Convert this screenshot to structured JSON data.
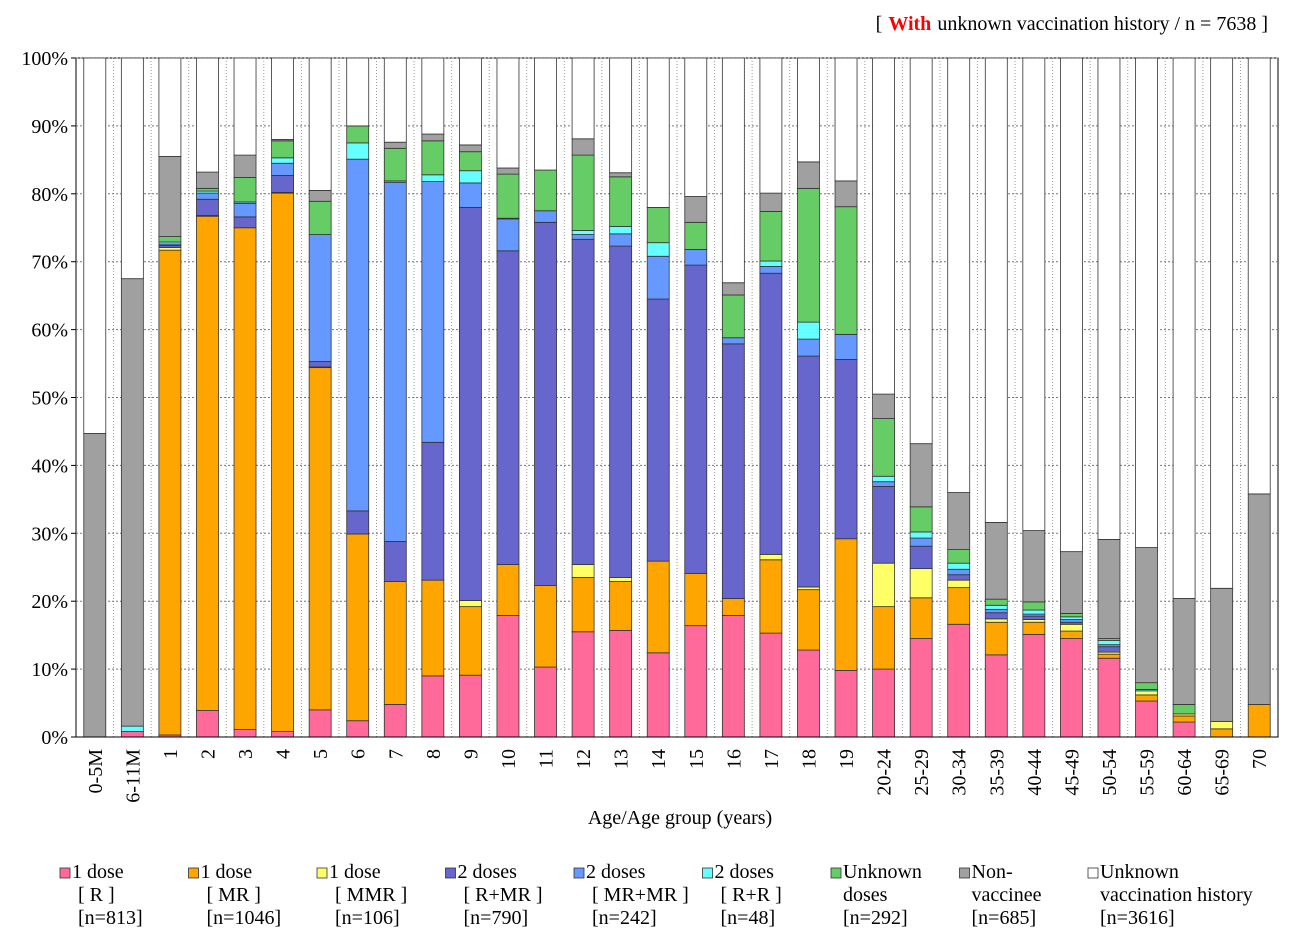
{
  "chart_data": {
    "type": "stacked_bar",
    "title": [
      "[",
      "With",
      "unknown vaccination history / n = 7638 ]"
    ],
    "x_label": "Age/Age group (years)",
    "categories": [
      "0-5M",
      "6-11M",
      "1",
      "2",
      "3",
      "4",
      "5",
      "6",
      "7",
      "8",
      "9",
      "10",
      "11",
      "12",
      "13",
      "14",
      "15",
      "16",
      "17",
      "18",
      "19",
      "20-24",
      "25-29",
      "30-34",
      "35-39",
      "40-44",
      "45-49",
      "50-54",
      "55-59",
      "60-64",
      "65-69",
      "70"
    ],
    "ylim": [
      0,
      100
    ],
    "yticks": [
      {
        "value": 0,
        "label": "0%"
      },
      {
        "value": 10,
        "label": "10%"
      },
      {
        "value": 20,
        "label": "20%"
      },
      {
        "value": 30,
        "label": "30%"
      },
      {
        "value": 40,
        "label": "40%"
      },
      {
        "value": 50,
        "label": "50%"
      },
      {
        "value": 60,
        "label": "60%"
      },
      {
        "value": 70,
        "label": "70%"
      },
      {
        "value": 80,
        "label": "80%"
      },
      {
        "value": 90,
        "label": "90%"
      },
      {
        "value": 100,
        "label": "100%"
      }
    ],
    "grid": true,
    "series": [
      {
        "name": [
          "1 dose",
          "[ R ]",
          "[n=813]"
        ],
        "color": "#ff6a9a",
        "values": [
          0,
          0.8,
          0.3,
          3.9,
          1.1,
          0.8,
          4.0,
          2.4,
          4.8,
          9.0,
          9.1,
          17.9,
          10.3,
          15.5,
          15.7,
          12.4,
          16.4,
          17.9,
          15.3,
          12.8,
          9.8,
          10.0,
          14.5,
          16.6,
          12.1,
          15.1,
          14.5,
          11.6,
          5.3,
          2.2,
          0,
          0
        ]
      },
      {
        "name": [
          "1 dose",
          "[ MR ]",
          "[n=1046]"
        ],
        "color": "#ffa500",
        "values": [
          0,
          0,
          71.4,
          72.8,
          73.9,
          79.3,
          50.4,
          27.5,
          18.1,
          14.1,
          10.1,
          7.5,
          12.0,
          8.0,
          7.2,
          13.5,
          7.7,
          2.5,
          10.8,
          8.9,
          19.4,
          9.2,
          6.0,
          5.4,
          4.8,
          1.8,
          1.1,
          0.6,
          0.9,
          0.9,
          1.2,
          4.8
        ]
      },
      {
        "name": [
          "1 dose",
          "[ MMR ]",
          "[n=106]"
        ],
        "color": "#ffff66",
        "values": [
          0,
          0,
          0.4,
          0.1,
          0,
          0.1,
          0.1,
          0,
          0,
          0,
          0.9,
          0,
          0,
          1.9,
          0.6,
          0,
          0,
          0,
          0.8,
          0.4,
          0,
          6.4,
          4.3,
          1.1,
          0.5,
          0.4,
          1.0,
          0.3,
          0.6,
          0.3,
          1.1,
          0
        ]
      },
      {
        "name": [
          "2 doses",
          "[ R+MR ]",
          "[n=790]"
        ],
        "color": "#6666cc",
        "values": [
          0,
          0,
          0.3,
          2.4,
          1.6,
          2.5,
          0.8,
          3.4,
          5.9,
          20.3,
          57.9,
          46.2,
          53.5,
          47.9,
          48.8,
          38.6,
          45.4,
          37.5,
          41.4,
          34.0,
          26.4,
          11.3,
          3.3,
          0.8,
          0.9,
          0.5,
          0.3,
          0.8,
          0,
          0,
          0,
          0
        ]
      },
      {
        "name": [
          "2 doses",
          "[ MR+MR ]",
          "[n=242]"
        ],
        "color": "#6699ff",
        "values": [
          0,
          0,
          0.2,
          0.9,
          2.0,
          1.8,
          18.7,
          51.8,
          52.9,
          38.4,
          3.6,
          4.7,
          1.7,
          0.7,
          1.8,
          6.3,
          2.3,
          0.9,
          1.0,
          2.5,
          3.7,
          0.7,
          1.2,
          0.8,
          0.5,
          0.3,
          0.4,
          0.3,
          0,
          0,
          0,
          0
        ]
      },
      {
        "name": [
          "2 doses",
          "[ R+R ]",
          "[n=48]"
        ],
        "color": "#66ffff",
        "values": [
          0,
          0.8,
          0.3,
          0.3,
          0.2,
          0.8,
          0,
          2.4,
          0.2,
          1.0,
          1.8,
          0.1,
          0,
          0.6,
          1.1,
          2.0,
          0,
          0,
          0.8,
          2.5,
          0,
          0.8,
          0.9,
          0.9,
          0.6,
          0.6,
          0.4,
          0.6,
          0.2,
          0,
          0,
          0
        ]
      },
      {
        "name": [
          "Unknown",
          "doses",
          "[n=292]"
        ],
        "color": "#66cc66",
        "values": [
          0,
          0,
          0.8,
          0.4,
          3.6,
          2.5,
          4.9,
          2.5,
          4.8,
          5.0,
          2.8,
          6.5,
          6.0,
          11.1,
          7.3,
          5.2,
          4.0,
          6.3,
          7.3,
          19.7,
          18.8,
          8.5,
          3.7,
          2.0,
          0.9,
          1.2,
          0.5,
          0.3,
          1.0,
          1.4,
          0,
          0
        ]
      },
      {
        "name": [
          "Non-",
          "vaccinee",
          "[n=685]"
        ],
        "color": "#a0a0a0",
        "values": [
          44.7,
          65.9,
          11.8,
          2.4,
          3.3,
          0.2,
          1.6,
          0,
          0.9,
          1.0,
          1.0,
          0.9,
          0,
          2.4,
          0.6,
          0,
          3.8,
          1.8,
          2.7,
          3.9,
          3.8,
          3.6,
          9.3,
          8.4,
          11.3,
          10.5,
          9.1,
          14.6,
          19.9,
          15.6,
          19.6,
          31.0
        ]
      },
      {
        "name": [
          "Unknown",
          "vaccination history",
          "[n=3616]"
        ],
        "color": "#ffffff",
        "values": [
          55.3,
          32.5,
          14.5,
          16.8,
          14.3,
          12.0,
          19.5,
          10.0,
          12.4,
          11.2,
          12.8,
          16.2,
          16.5,
          11.9,
          16.9,
          22.0,
          20.4,
          33.1,
          19.9,
          15.3,
          18.1,
          49.5,
          56.8,
          64.0,
          68.4,
          69.6,
          72.7,
          70.9,
          72.1,
          79.6,
          78.1,
          64.2
        ]
      }
    ]
  }
}
